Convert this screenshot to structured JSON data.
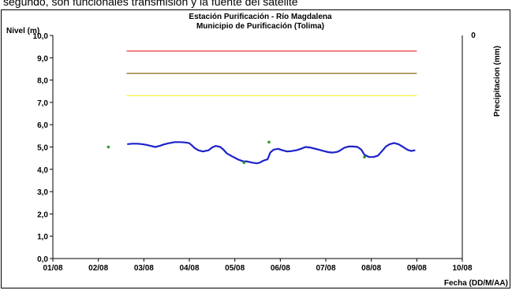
{
  "top_text": "segundo, son funcionales transmisión y la fuente del satélite",
  "chart_data": {
    "type": "line",
    "title": "Estación Purificación - Río Magdalena",
    "subtitle": "Municipio de Purificación (Tolima)",
    "ylabel": "Nivel (m)",
    "y2label": "Precipitacion (mm)",
    "y2_tick": "0",
    "xlabel": "Fecha (DD/M/AA)",
    "ylim": [
      0,
      10
    ],
    "xlim": [
      0,
      9
    ],
    "x_ticks": [
      "01/08",
      "02/08",
      "03/08",
      "04/08",
      "05/08",
      "06/08",
      "07/08",
      "08/08",
      "09/08",
      "10/08"
    ],
    "y_ticks": [
      "0,0",
      "1,0",
      "2,0",
      "3,0",
      "4,0",
      "5,0",
      "6,0",
      "7,0",
      "8,0",
      "9,0",
      "10,0"
    ],
    "thresholds": [
      {
        "value": 9.3,
        "color": "#e02020"
      },
      {
        "value": 8.3,
        "color": "#8a6a10"
      },
      {
        "value": 7.3,
        "color": "#f5f040"
      }
    ],
    "threshold_x_range": [
      1.62,
      8.0
    ],
    "level_color": "#1c22c8",
    "level_series": [
      [
        1.65,
        5.13
      ],
      [
        1.75,
        5.15
      ],
      [
        1.85,
        5.15
      ],
      [
        1.95,
        5.13
      ],
      [
        2.05,
        5.1
      ],
      [
        2.15,
        5.05
      ],
      [
        2.25,
        5.0
      ],
      [
        2.35,
        5.05
      ],
      [
        2.45,
        5.12
      ],
      [
        2.55,
        5.17
      ],
      [
        2.68,
        5.22
      ],
      [
        2.8,
        5.22
      ],
      [
        2.92,
        5.2
      ],
      [
        3.0,
        5.17
      ],
      [
        3.05,
        5.08
      ],
      [
        3.12,
        4.95
      ],
      [
        3.2,
        4.85
      ],
      [
        3.3,
        4.8
      ],
      [
        3.42,
        4.85
      ],
      [
        3.5,
        4.98
      ],
      [
        3.58,
        5.05
      ],
      [
        3.68,
        5.0
      ],
      [
        3.75,
        4.88
      ],
      [
        3.82,
        4.72
      ],
      [
        3.92,
        4.6
      ],
      [
        4.0,
        4.52
      ],
      [
        4.08,
        4.43
      ],
      [
        4.18,
        4.36
      ],
      [
        4.28,
        4.35
      ],
      [
        4.38,
        4.3
      ],
      [
        4.48,
        4.27
      ],
      [
        4.55,
        4.3
      ],
      [
        4.62,
        4.38
      ],
      [
        4.72,
        4.45
      ],
      [
        4.78,
        4.75
      ],
      [
        4.85,
        4.88
      ],
      [
        4.95,
        4.92
      ],
      [
        5.05,
        4.85
      ],
      [
        5.15,
        4.8
      ],
      [
        5.25,
        4.82
      ],
      [
        5.35,
        4.85
      ],
      [
        5.45,
        4.92
      ],
      [
        5.55,
        5.0
      ],
      [
        5.65,
        4.98
      ],
      [
        5.75,
        4.93
      ],
      [
        5.85,
        4.88
      ],
      [
        5.95,
        4.82
      ],
      [
        6.05,
        4.77
      ],
      [
        6.15,
        4.75
      ],
      [
        6.25,
        4.78
      ],
      [
        6.32,
        4.85
      ],
      [
        6.4,
        4.96
      ],
      [
        6.5,
        5.02
      ],
      [
        6.6,
        5.02
      ],
      [
        6.7,
        5.0
      ],
      [
        6.78,
        4.88
      ],
      [
        6.85,
        4.65
      ],
      [
        6.95,
        4.55
      ],
      [
        7.05,
        4.55
      ],
      [
        7.15,
        4.62
      ],
      [
        7.25,
        4.85
      ],
      [
        7.32,
        5.02
      ],
      [
        7.4,
        5.12
      ],
      [
        7.5,
        5.18
      ],
      [
        7.6,
        5.12
      ],
      [
        7.7,
        5.0
      ],
      [
        7.8,
        4.87
      ],
      [
        7.88,
        4.82
      ],
      [
        7.95,
        4.85
      ]
    ],
    "marker_color": "#2a9a2a",
    "markers": [
      [
        1.22,
        5.0
      ],
      [
        4.2,
        4.3
      ],
      [
        4.75,
        5.22
      ],
      [
        6.85,
        4.55
      ]
    ]
  }
}
